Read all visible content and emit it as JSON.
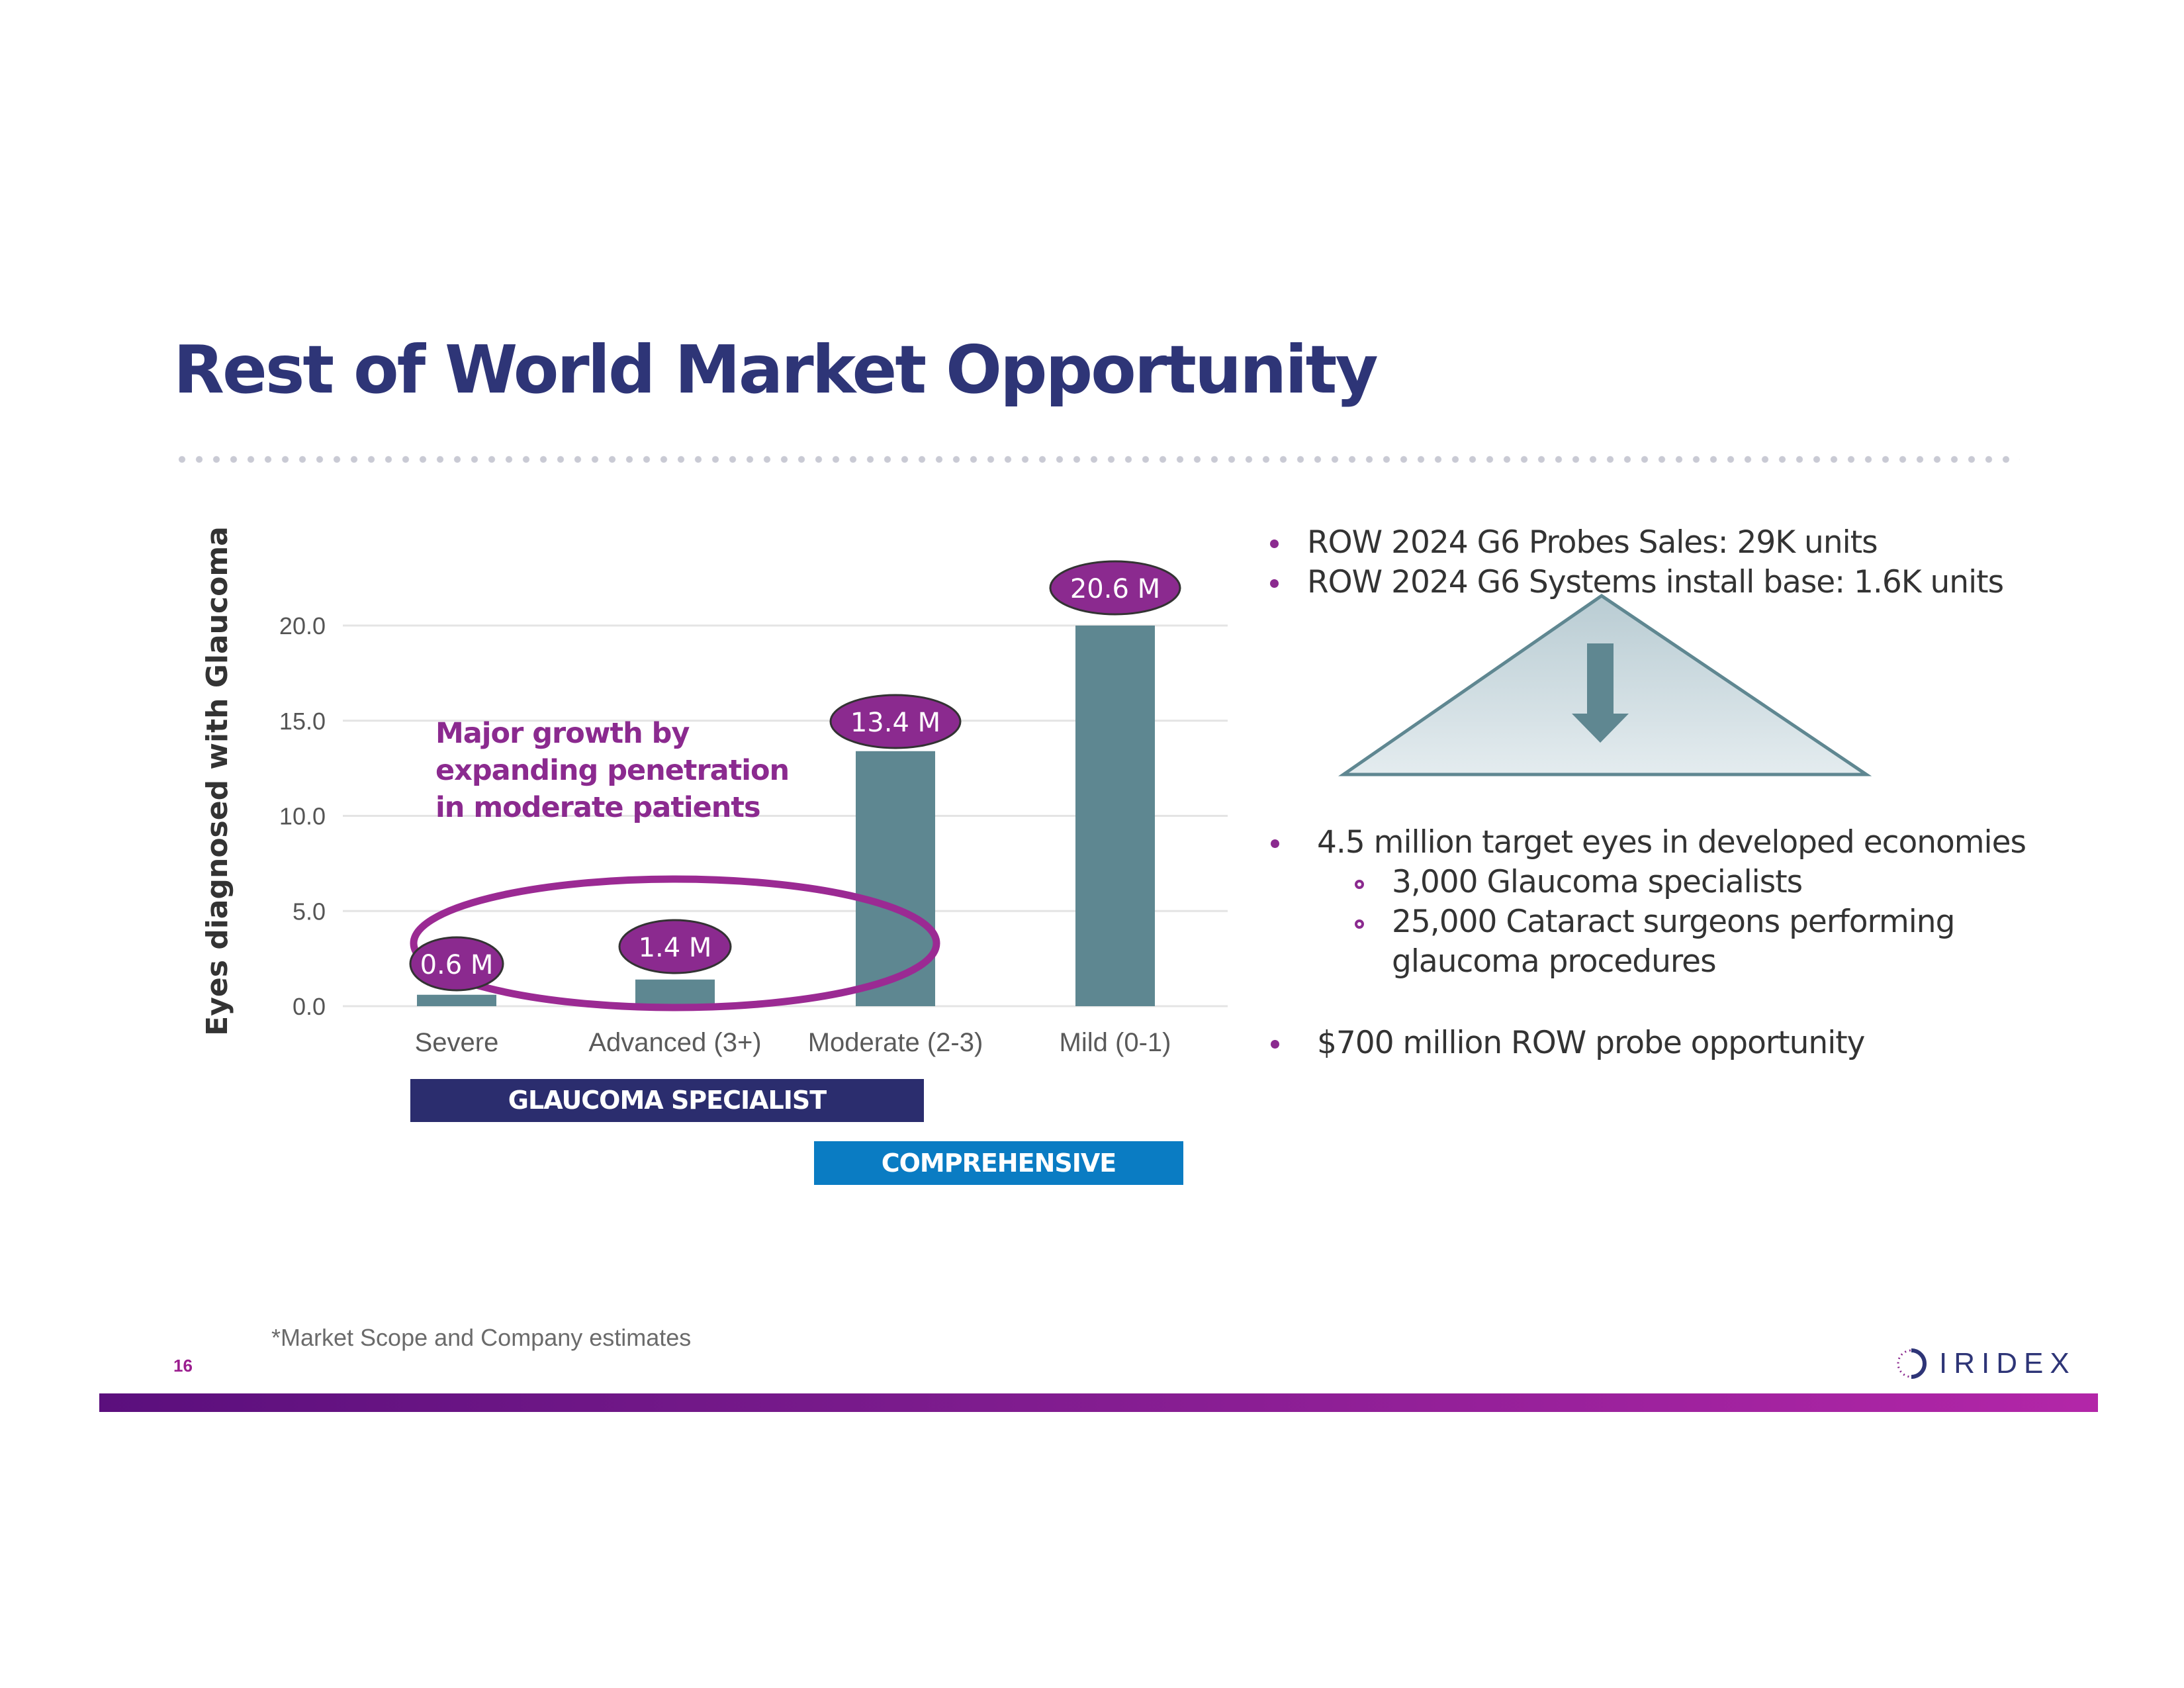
{
  "title": "Rest of World Market Opportunity",
  "chart_data": {
    "type": "bar",
    "ylabel": "Eyes diagnosed with Glaucoma",
    "xlabel": "",
    "categories": [
      "Severe",
      "Advanced (3+)",
      "Moderate (2-3)",
      "Mild (0-1)"
    ],
    "values": [
      0.6,
      1.4,
      13.4,
      20.6
    ],
    "data_labels": [
      "0.6 M",
      "1.4 M",
      "13.4 M",
      "20.6 M"
    ],
    "yticks": [
      "0.0",
      "5.0",
      "10.0",
      "15.0",
      "20.0"
    ],
    "ylim": [
      0,
      20
    ],
    "grid": true,
    "colors": {
      "bar": "#5e8791",
      "label_bubble": "#8b2a8f",
      "highlight_ellipse": "#9b2a93"
    }
  },
  "annotation": "Major growth by expanding penetration in moderate patients",
  "segments": {
    "specialist": "GLAUCOMA SPECIALIST",
    "comprehensive": "COMPREHENSIVE"
  },
  "bullets_top": [
    "ROW 2024 G6 Probes Sales: 29K units",
    "ROW 2024 G6 Systems install base: 1.6K units"
  ],
  "bullets_bottom": {
    "main": "4.5 million target eyes in developed economies",
    "sub": [
      "3,000 Glaucoma specialists",
      "25,000 Cataract surgeons performing",
      "glaucoma procedures"
    ],
    "opportunity": "$700 million ROW probe opportunity"
  },
  "footnote": "*Market Scope and Company estimates",
  "page_number": "16",
  "logo": "IRIDEX",
  "colors": {
    "title": "#2e3577",
    "accent": "#8b2a8f",
    "navy": "#2b2d6e",
    "blue": "#0a7cc3"
  }
}
